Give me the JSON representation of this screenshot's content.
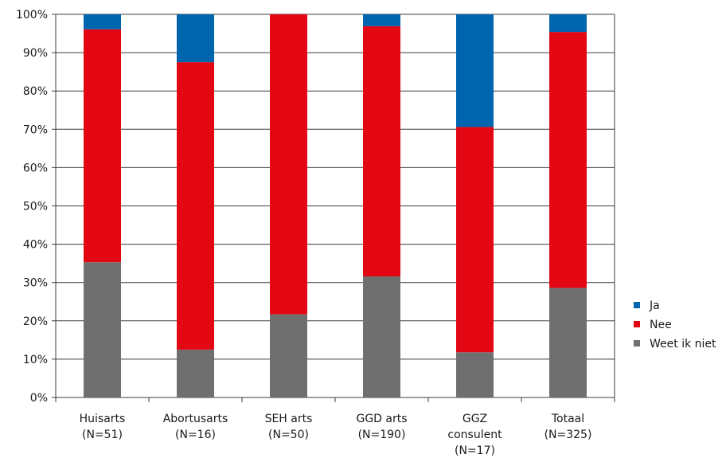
{
  "chart_data": {
    "type": "bar",
    "stacked": true,
    "categories": [
      [
        "Huisarts",
        "(N=51)"
      ],
      [
        "Abortusarts",
        "(N=16)"
      ],
      [
        "SEH arts",
        "(N=50)"
      ],
      [
        "GGD arts",
        "(N=190)"
      ],
      [
        "GGZ",
        "consulent",
        "(N=17)"
      ],
      [
        "Totaal",
        "(N=325)"
      ]
    ],
    "series": [
      {
        "name": "Weet ik niet",
        "color": "#706f6f",
        "values": [
          35.3,
          12.5,
          21.7,
          31.6,
          11.8,
          28.6
        ]
      },
      {
        "name": "Nee",
        "color": "#e30613",
        "values": [
          60.8,
          75.0,
          78.3,
          65.3,
          58.8,
          66.8
        ]
      },
      {
        "name": "Ja",
        "color": "#0065af",
        "values": [
          3.9,
          12.5,
          0.0,
          3.1,
          29.4,
          4.6
        ]
      }
    ],
    "yticks": [
      "0%",
      "10%",
      "20%",
      "30%",
      "40%",
      "50%",
      "60%",
      "70%",
      "80%",
      "90%",
      "100%"
    ],
    "ylim": [
      0,
      100
    ],
    "grid": true,
    "legend": {
      "position": "right",
      "order": [
        "Ja",
        "Nee",
        "Weet ik niet"
      ]
    }
  }
}
